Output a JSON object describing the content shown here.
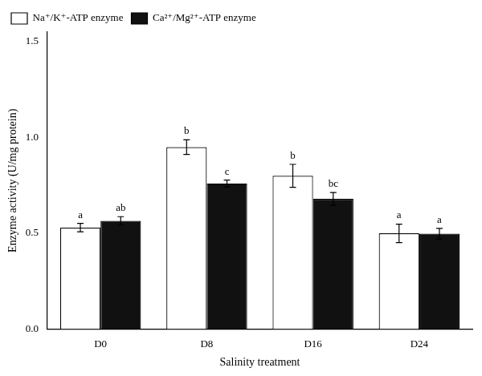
{
  "chart_data": {
    "type": "bar",
    "xlabel": "Salinity treatment",
    "ylabel": "Enzyme activity (U/mg protein)",
    "categories": [
      "D0",
      "D8",
      "D16",
      "D24"
    ],
    "series": [
      {
        "name": "Na⁺/K⁺-ATP enzyme",
        "color": "#ffffff",
        "values": [
          0.53,
          0.95,
          0.8,
          0.5
        ],
        "errors": [
          0.022,
          0.038,
          0.06,
          0.048
        ],
        "annotations": [
          "a",
          "b",
          "b",
          "a"
        ]
      },
      {
        "name": "Ca²⁺/Mg²⁺-ATP enzyme",
        "color": "#111111",
        "values": [
          0.565,
          0.76,
          0.68,
          0.498
        ],
        "errors": [
          0.022,
          0.018,
          0.033,
          0.028
        ],
        "annotations": [
          "ab",
          "c",
          "bc",
          "a"
        ]
      }
    ],
    "ylim": [
      0.0,
      1.55
    ],
    "yticks": [
      {
        "value": 0.0,
        "label": "0.0"
      },
      0.5,
      {
        "value": 1.0,
        "label": "1.0"
      },
      1.5
    ],
    "grid": false,
    "legend": "upper left"
  }
}
